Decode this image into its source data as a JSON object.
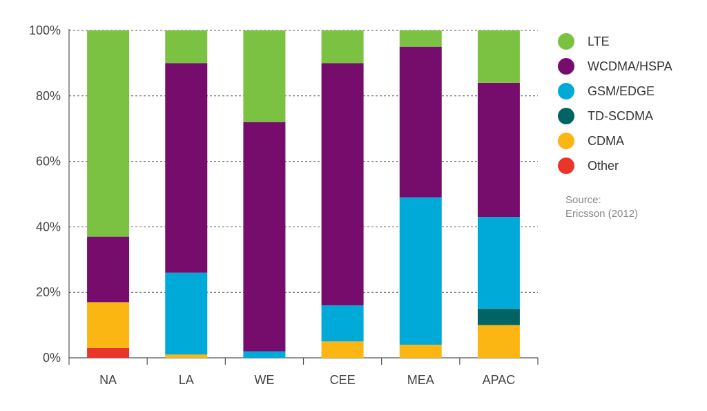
{
  "chart_data": {
    "type": "bar",
    "stacked": true,
    "categories": [
      "NA",
      "LA",
      "WE",
      "CEE",
      "MEA",
      "APAC"
    ],
    "series": [
      {
        "name": "Other",
        "color": "#e8372a",
        "values": [
          3,
          0,
          0,
          0,
          0,
          0
        ]
      },
      {
        "name": "CDMA",
        "color": "#fbb613",
        "values": [
          14,
          1,
          0,
          5,
          4,
          10
        ]
      },
      {
        "name": "TD-SCDMA",
        "color": "#006464",
        "values": [
          0,
          0,
          0,
          0,
          0,
          5
        ]
      },
      {
        "name": "GSM/EDGE",
        "color": "#00aad8",
        "values": [
          0,
          25,
          2,
          11,
          45,
          28
        ]
      },
      {
        "name": "WCDMA/HSPA",
        "color": "#760c6c",
        "values": [
          20,
          64,
          70,
          74,
          46,
          41
        ]
      },
      {
        "name": "LTE",
        "color": "#7cc242",
        "values": [
          63,
          10,
          28,
          10,
          5,
          16
        ]
      }
    ],
    "y_ticks": [
      "0%",
      "20%",
      "40%",
      "60%",
      "80%",
      "100%"
    ],
    "ylim": [
      0,
      100
    ],
    "grid": true,
    "legend_position": "right",
    "legend_order": [
      "LTE",
      "WCDMA/HSPA",
      "GSM/EDGE",
      "TD-SCDMA",
      "CDMA",
      "Other"
    ]
  },
  "source_label": "Source:",
  "source_text": "Ericsson (2012)"
}
